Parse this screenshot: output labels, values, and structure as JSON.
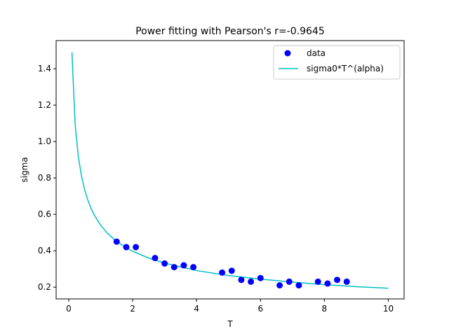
{
  "chart_data": {
    "type": "scatter",
    "title": "Power fitting with Pearson's r=-0.9645",
    "xlabel": "T",
    "ylabel": "sigma",
    "xlim": [
      -0.395,
      10.495
    ],
    "ylim": [
      0.1355,
      1.5545
    ],
    "x_ticks": [
      0,
      2,
      4,
      6,
      8,
      10
    ],
    "x_tick_labels": [
      "0",
      "2",
      "4",
      "6",
      "8",
      "10"
    ],
    "y_ticks": [
      0.2,
      0.4,
      0.6,
      0.8,
      1.0,
      1.2,
      1.4
    ],
    "y_tick_labels": [
      "0.2",
      "0.4",
      "0.6",
      "0.8",
      "1.0",
      "1.2",
      "1.4"
    ],
    "grid": false,
    "legend_position": "top-right",
    "series": [
      {
        "name": "data",
        "kind": "scatter",
        "color": "#0000ff",
        "x": [
          1.5,
          1.8,
          2.1,
          2.7,
          3.0,
          3.3,
          3.6,
          3.9,
          4.8,
          5.1,
          5.4,
          5.7,
          6.0,
          6.6,
          6.9,
          7.2,
          7.8,
          8.1,
          8.4,
          8.7
        ],
        "y": [
          0.45,
          0.42,
          0.42,
          0.36,
          0.33,
          0.31,
          0.32,
          0.31,
          0.28,
          0.29,
          0.24,
          0.23,
          0.25,
          0.21,
          0.23,
          0.21,
          0.23,
          0.22,
          0.24,
          0.23
        ]
      },
      {
        "name": "sigma0*T^(alpha)",
        "kind": "line",
        "color": "#00bfbf",
        "x": [
          0.1,
          0.2,
          0.3,
          0.4,
          0.5,
          0.6,
          0.7,
          0.8,
          1.0,
          1.2,
          1.5,
          2.0,
          2.5,
          3.0,
          4.0,
          5.0,
          6.0,
          7.0,
          8.0,
          9.0,
          10.0
        ],
        "y": [
          1.49,
          1.095,
          0.917,
          0.809,
          0.734,
          0.677,
          0.632,
          0.596,
          0.54,
          0.498,
          0.45,
          0.397,
          0.36,
          0.332,
          0.291,
          0.264,
          0.244,
          0.228,
          0.214,
          0.203,
          0.194
        ]
      }
    ]
  }
}
